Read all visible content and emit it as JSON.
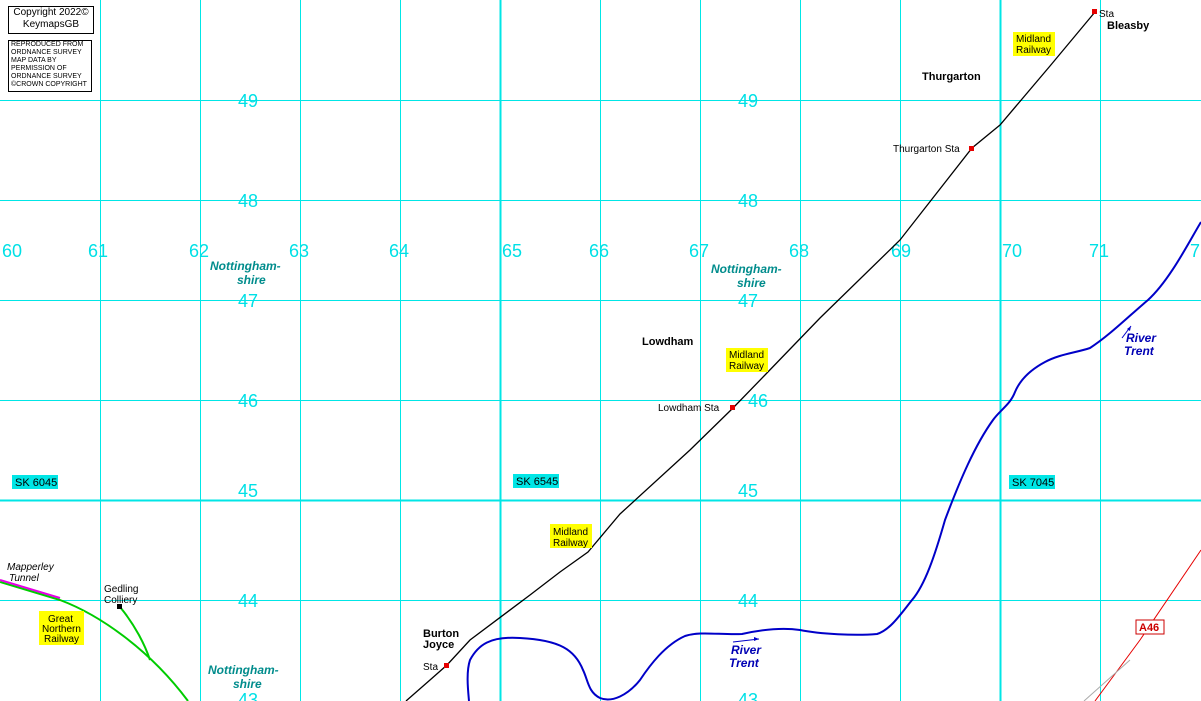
{
  "copyright": {
    "line1": "Copyright 2022©",
    "line2": "KeymapsGB"
  },
  "permission": {
    "lines": [
      "REPRODUCED FROM",
      "ORDNANCE SURVEY",
      "MAP DATA BY",
      "PERMISSION OF",
      "ORDNANCE SURVEY",
      "©CROWN COPYRIGHT"
    ]
  },
  "grid": {
    "eastings": [
      "60",
      "61",
      "62",
      "63",
      "64",
      "65",
      "66",
      "67",
      "68",
      "69",
      "70",
      "71",
      "7"
    ],
    "northings": [
      "49",
      "48",
      "47",
      "46",
      "45",
      "44",
      "43"
    ]
  },
  "squares": {
    "sq1": "SK 6045",
    "sq2": "SK 6545",
    "sq3": "SK 7045"
  },
  "county": {
    "line1": "Nottingham-",
    "line2": "shire"
  },
  "railway": {
    "line1": "Midland",
    "line2": "Railway"
  },
  "gnr": {
    "line1": "Great",
    "line2": "Northern",
    "line3": "Railway"
  },
  "places": {
    "bleasby": "Bleasby",
    "thurgarton": "Thurgarton",
    "lowdham": "Lowdham",
    "burton1": "Burton",
    "burton2": "Joyce"
  },
  "stations": {
    "bleasby": "Sta",
    "thurgarton": "Thurgarton Sta",
    "lowdham": "Lowdham Sta",
    "burton": "Sta"
  },
  "gedling": {
    "line1": "Gedling",
    "line2": "Colliery"
  },
  "mapperley": {
    "line1": "Mapperley",
    "line2": "Tunnel"
  },
  "river": {
    "line1": "River",
    "line2": "Trent"
  },
  "road": "A46",
  "colors": {
    "grid": "#00e6e6",
    "railway": "#000000",
    "river": "#0000c8",
    "gnr": "#00c800",
    "tunnel": "#e600e6",
    "road": "#e60000"
  }
}
